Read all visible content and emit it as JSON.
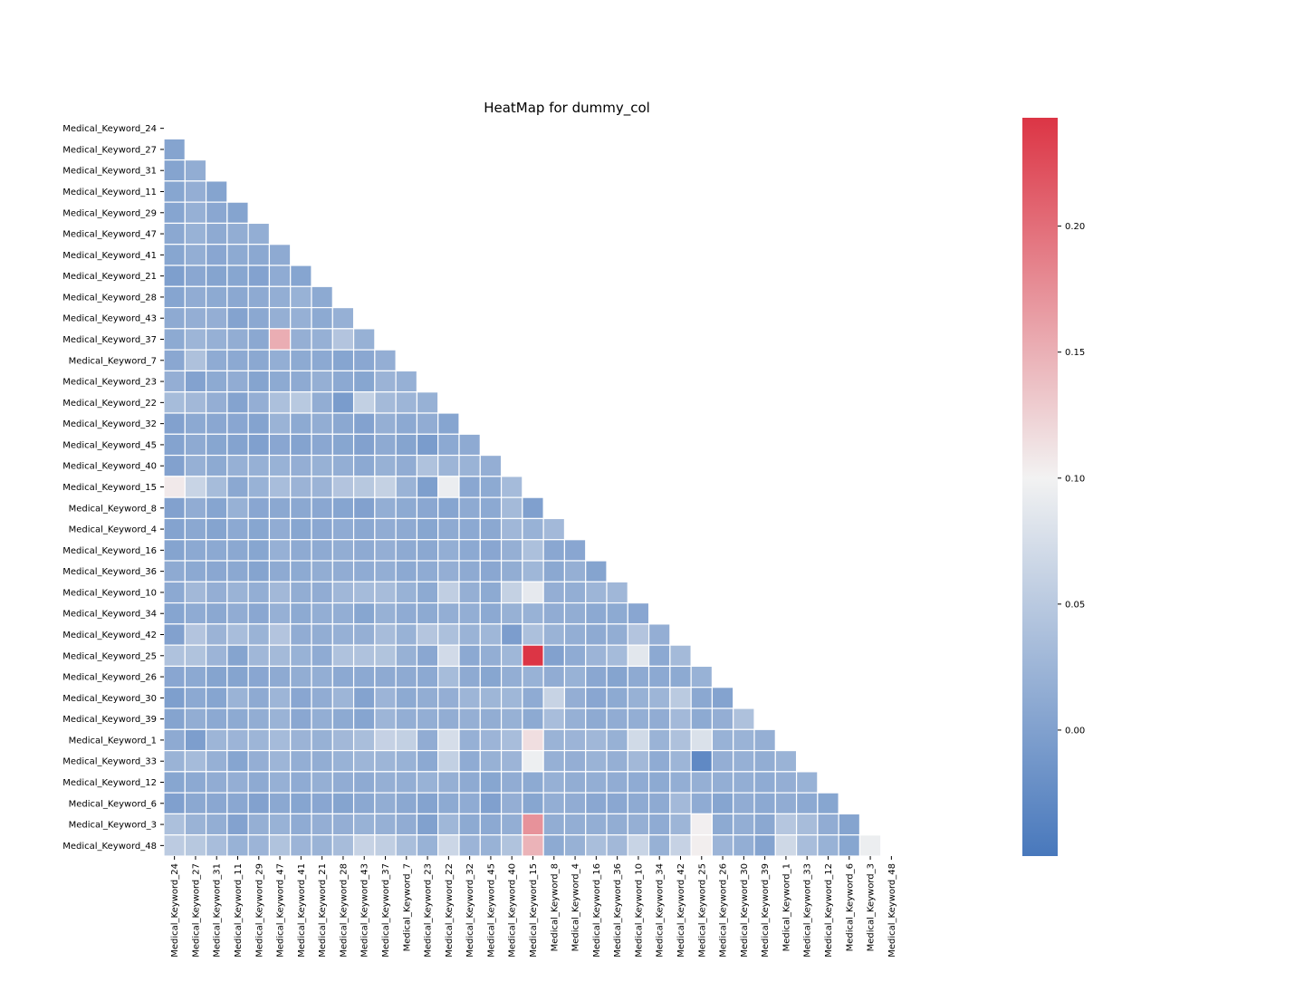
{
  "chart_data": {
    "type": "heatmap",
    "title": "HeatMap for dummy_col",
    "xlabel": "",
    "ylabel": "",
    "labels": [
      "Medical_Keyword_24",
      "Medical_Keyword_27",
      "Medical_Keyword_31",
      "Medical_Keyword_11",
      "Medical_Keyword_29",
      "Medical_Keyword_47",
      "Medical_Keyword_41",
      "Medical_Keyword_21",
      "Medical_Keyword_28",
      "Medical_Keyword_43",
      "Medical_Keyword_37",
      "Medical_Keyword_7",
      "Medical_Keyword_23",
      "Medical_Keyword_22",
      "Medical_Keyword_32",
      "Medical_Keyword_45",
      "Medical_Keyword_40",
      "Medical_Keyword_15",
      "Medical_Keyword_8",
      "Medical_Keyword_4",
      "Medical_Keyword_16",
      "Medical_Keyword_36",
      "Medical_Keyword_10",
      "Medical_Keyword_34",
      "Medical_Keyword_42",
      "Medical_Keyword_25",
      "Medical_Keyword_26",
      "Medical_Keyword_30",
      "Medical_Keyword_39",
      "Medical_Keyword_1",
      "Medical_Keyword_33",
      "Medical_Keyword_12",
      "Medical_Keyword_6",
      "Medical_Keyword_3",
      "Medical_Keyword_48"
    ],
    "mask": "upper-triangle",
    "colormap": {
      "low": "#4878bc",
      "mid": "#f2f2f2",
      "high": "#dc3545"
    },
    "vmin": -0.05,
    "vcenter": 0.1,
    "vmax": 0.243,
    "colorbar_ticks": [
      "0.00",
      "0.05",
      "0.10",
      "0.15",
      "0.20"
    ],
    "colorbar_tick_values": [
      0.0,
      0.05,
      0.1,
      0.15,
      0.2
    ],
    "grid_color": "#ffffff",
    "values": [
      [],
      [
        0.004
      ],
      [
        0.004,
        0.015
      ],
      [
        0.006,
        0.017,
        0.004
      ],
      [
        0.005,
        0.019,
        0.008,
        0.004
      ],
      [
        0.009,
        0.021,
        0.012,
        0.015,
        0.016
      ],
      [
        0.006,
        0.016,
        0.007,
        0.011,
        0.009,
        0.012
      ],
      [
        -0.002,
        0.008,
        0.004,
        0.006,
        0.002,
        0.013,
        0.005
      ],
      [
        0.005,
        0.014,
        0.011,
        0.009,
        0.012,
        0.016,
        0.021,
        0.011
      ],
      [
        0.012,
        0.017,
        0.017,
        0.003,
        0.009,
        0.018,
        0.019,
        0.011,
        0.019
      ],
      [
        0.011,
        0.025,
        0.019,
        0.015,
        0.009,
        0.152,
        0.018,
        0.019,
        0.044,
        0.02
      ],
      [
        0.008,
        0.04,
        0.013,
        0.01,
        0.009,
        0.016,
        0.011,
        0.01,
        0.005,
        0.008,
        0.017
      ],
      [
        0.017,
        0.002,
        0.011,
        0.014,
        0.004,
        0.011,
        0.012,
        0.018,
        0.01,
        0.006,
        0.023,
        0.019
      ],
      [
        0.033,
        0.029,
        0.017,
        0.003,
        0.017,
        0.038,
        0.049,
        0.015,
        -0.006,
        0.058,
        0.031,
        0.025,
        0.02
      ],
      [
        0.001,
        0.01,
        0.008,
        0.007,
        0.003,
        0.022,
        0.011,
        0.015,
        0.009,
        0.002,
        0.018,
        0.01,
        0.014,
        0.005
      ],
      [
        0.003,
        0.012,
        0.006,
        0.003,
        -0.001,
        0.007,
        0.003,
        0.008,
        0.006,
        0.001,
        0.012,
        0.004,
        -0.006,
        0.01,
        0.012
      ],
      [
        0.001,
        0.019,
        0.011,
        0.019,
        0.019,
        0.021,
        0.017,
        0.02,
        0.016,
        0.01,
        0.02,
        0.014,
        0.041,
        0.025,
        0.022,
        0.017
      ],
      [
        0.107,
        0.063,
        0.033,
        0.009,
        0.021,
        0.035,
        0.023,
        0.023,
        0.044,
        0.048,
        0.059,
        0.022,
        -0.002,
        0.094,
        0.008,
        0.011,
        0.032
      ],
      [
        0.001,
        0.014,
        0.005,
        0.02,
        0.007,
        0.009,
        0.009,
        0.008,
        0.005,
        0.001,
        0.016,
        0.011,
        0.008,
        0.005,
        0.012,
        0.01,
        0.031,
        -0.001
      ],
      [
        0.003,
        0.009,
        0.004,
        0.01,
        0.006,
        0.014,
        0.006,
        0.008,
        0.013,
        0.009,
        0.014,
        0.012,
        0.006,
        0.012,
        0.01,
        0.009,
        0.028,
        0.021,
        0.03
      ],
      [
        0.004,
        0.01,
        0.01,
        0.009,
        0.006,
        0.019,
        0.012,
        0.012,
        0.015,
        0.012,
        0.017,
        0.012,
        0.009,
        0.016,
        0.01,
        0.007,
        0.018,
        0.038,
        0.008,
        0.007
      ],
      [
        0.012,
        0.01,
        0.008,
        0.009,
        0.004,
        0.012,
        0.011,
        0.015,
        0.014,
        0.013,
        0.016,
        0.01,
        0.013,
        0.017,
        0.012,
        0.008,
        0.015,
        0.027,
        0.009,
        0.018,
        0.004
      ],
      [
        0.01,
        0.029,
        0.017,
        0.022,
        0.016,
        0.029,
        0.015,
        0.014,
        0.028,
        0.032,
        0.034,
        0.021,
        0.011,
        0.056,
        0.018,
        0.011,
        0.059,
        0.089,
        0.017,
        0.016,
        0.025,
        0.028
      ],
      [
        0.005,
        0.013,
        0.009,
        0.014,
        0.008,
        0.019,
        0.011,
        0.016,
        0.016,
        0.006,
        0.02,
        0.013,
        0.011,
        0.016,
        0.016,
        0.01,
        0.02,
        0.021,
        0.014,
        0.015,
        0.01,
        0.011,
        0.007
      ],
      [
        0.001,
        0.044,
        0.023,
        0.035,
        0.022,
        0.044,
        0.014,
        0.015,
        0.019,
        0.018,
        0.034,
        0.021,
        0.045,
        0.038,
        0.022,
        0.027,
        -0.004,
        0.038,
        0.022,
        0.016,
        0.012,
        0.015,
        0.044,
        0.017
      ],
      [
        0.041,
        0.042,
        0.024,
        0.004,
        0.028,
        0.031,
        0.021,
        0.013,
        0.041,
        0.041,
        0.043,
        0.02,
        0.008,
        0.071,
        0.01,
        0.016,
        0.027,
        0.243,
        0.001,
        0.013,
        0.024,
        0.032,
        0.086,
        0.01,
        0.031
      ],
      [
        0.007,
        0.01,
        0.004,
        0.004,
        0.007,
        0.012,
        0.015,
        0.016,
        0.01,
        0.01,
        0.012,
        0.012,
        0.01,
        0.033,
        0.012,
        0.006,
        0.016,
        0.021,
        0.014,
        0.021,
        0.008,
        0.004,
        0.012,
        0.01,
        0.011,
        0.021
      ],
      [
        -0.002,
        0.01,
        0.005,
        0.022,
        0.012,
        0.025,
        0.007,
        0.014,
        0.025,
        0.003,
        0.024,
        0.011,
        0.015,
        0.017,
        0.025,
        0.026,
        0.027,
        0.013,
        0.062,
        0.017,
        0.007,
        0.011,
        0.02,
        0.025,
        0.051,
        0.009,
        0.003
      ],
      [
        0.004,
        0.015,
        0.01,
        0.011,
        0.015,
        0.022,
        0.008,
        0.016,
        0.011,
        0.005,
        0.025,
        0.016,
        0.016,
        0.015,
        0.018,
        0.015,
        0.02,
        0.011,
        0.035,
        0.019,
        0.012,
        0.014,
        0.016,
        0.014,
        0.03,
        0.011,
        0.017,
        0.04
      ],
      [
        0.012,
        -0.003,
        0.025,
        0.024,
        0.025,
        0.032,
        0.023,
        0.02,
        0.029,
        0.036,
        0.06,
        0.058,
        0.014,
        0.074,
        0.019,
        0.024,
        0.035,
        0.115,
        0.022,
        0.024,
        0.028,
        0.02,
        0.07,
        0.022,
        0.04,
        0.079,
        0.021,
        0.022,
        0.018
      ],
      [
        0.022,
        0.032,
        0.019,
        0.005,
        0.017,
        0.025,
        0.016,
        0.015,
        0.021,
        0.025,
        0.025,
        0.021,
        0.01,
        0.058,
        0.013,
        0.02,
        0.024,
        0.096,
        0.019,
        0.017,
        0.022,
        0.018,
        0.029,
        0.013,
        0.025,
        -0.029,
        0.017,
        0.019,
        0.015,
        0.022
      ],
      [
        0.006,
        0.01,
        0.014,
        0.017,
        0.012,
        0.019,
        0.013,
        0.018,
        0.014,
        0.012,
        0.018,
        0.016,
        0.021,
        0.018,
        0.012,
        0.006,
        0.014,
        0.011,
        0.019,
        0.015,
        0.016,
        0.014,
        0.013,
        0.011,
        0.016,
        0.018,
        0.016,
        0.016,
        0.013,
        0.017,
        0.021
      ],
      [
        -0.001,
        0.009,
        0.008,
        0.008,
        0.001,
        0.009,
        0.005,
        0.007,
        0.004,
        0.009,
        0.015,
        0.009,
        0.003,
        0.011,
        0.013,
        -0.001,
        0.017,
        0.006,
        0.016,
        0.014,
        0.008,
        0.008,
        0.012,
        0.012,
        0.03,
        0.013,
        0.005,
        0.014,
        0.01,
        0.014,
        0.01,
        0.006
      ],
      [
        0.038,
        0.022,
        0.016,
        0.002,
        0.018,
        0.021,
        0.013,
        0.017,
        0.017,
        0.021,
        0.019,
        0.014,
        0.0,
        0.027,
        0.011,
        0.01,
        0.016,
        0.173,
        0.015,
        0.016,
        0.016,
        0.015,
        0.018,
        0.013,
        0.025,
        0.102,
        0.011,
        0.016,
        0.009,
        0.046,
        0.034,
        0.014,
        0.004
      ],
      [
        0.052,
        0.048,
        0.035,
        0.021,
        0.024,
        0.042,
        0.024,
        0.022,
        0.034,
        0.061,
        0.056,
        0.036,
        0.021,
        0.066,
        0.024,
        0.021,
        0.042,
        0.148,
        0.011,
        0.02,
        0.036,
        0.029,
        0.063,
        0.02,
        0.061,
        0.103,
        0.024,
        0.016,
        0.003,
        0.068,
        0.035,
        0.021,
        0.006,
        0.095
      ]
    ]
  }
}
